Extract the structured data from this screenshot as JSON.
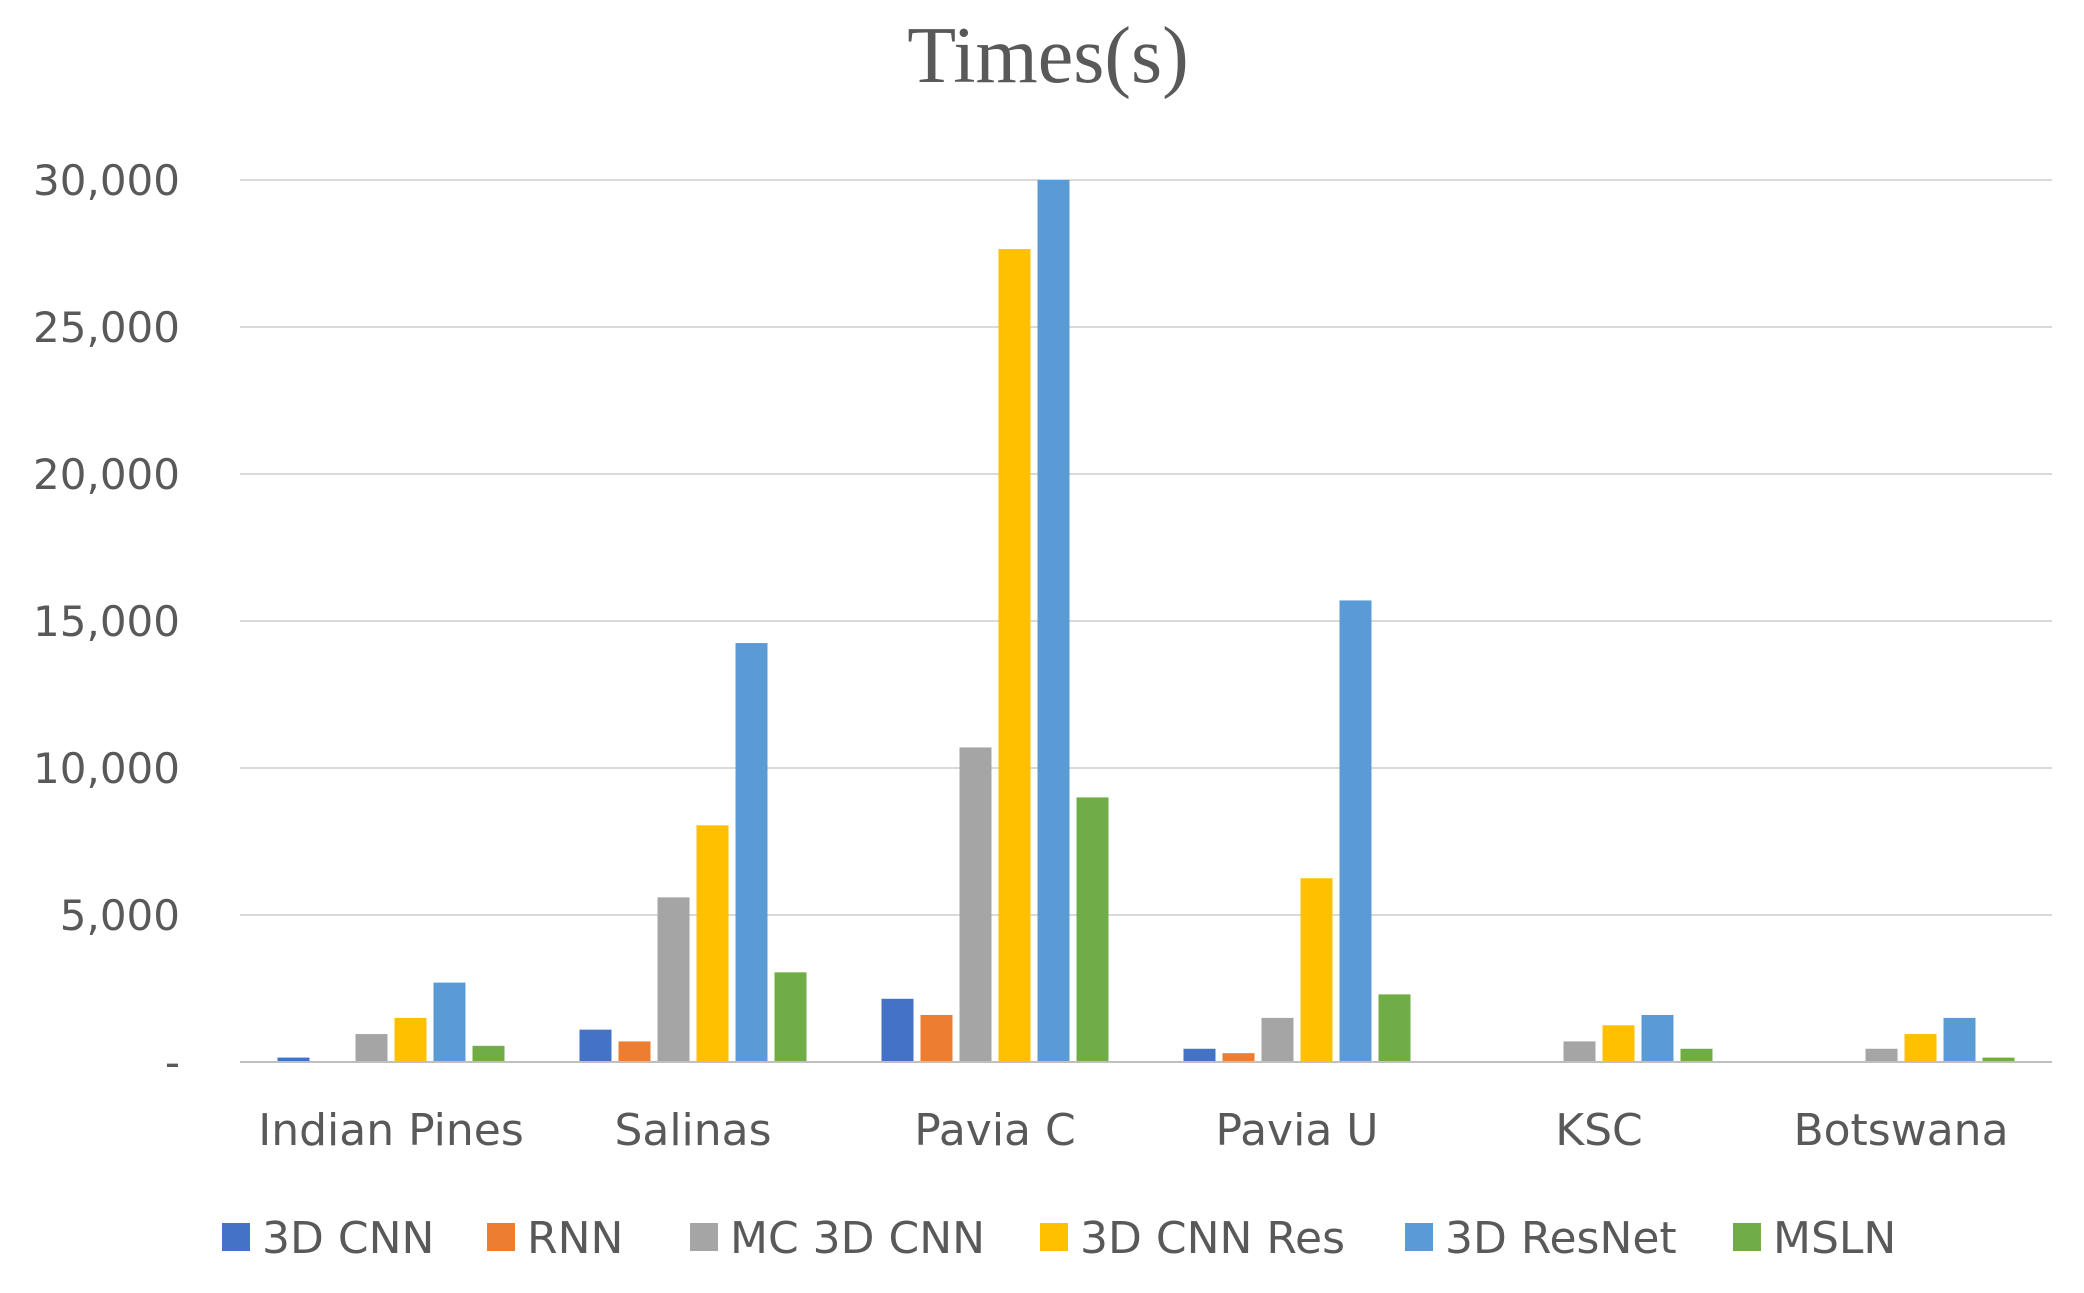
{
  "chart_data": {
    "type": "bar",
    "title": "Times(s)",
    "xlabel": "",
    "ylabel": "",
    "ylim": [
      0,
      30000
    ],
    "yticks": [
      0,
      5000,
      10000,
      15000,
      20000,
      25000,
      30000
    ],
    "ytick_labels": [
      "-",
      "5,000",
      "10,000",
      "15,000",
      "20,000",
      "25,000",
      "30,000"
    ],
    "grid": true,
    "legend_position": "bottom",
    "categories": [
      "Indian Pines",
      "Salinas",
      "Pavia C",
      "Pavia U",
      "KSC",
      "Botswana"
    ],
    "series": [
      {
        "name": "3D CNN",
        "color": "#4472c4",
        "values": [
          150,
          1100,
          2150,
          450,
          0,
          0
        ]
      },
      {
        "name": "RNN",
        "color": "#ed7d31",
        "values": [
          0,
          700,
          1600,
          300,
          0,
          0
        ]
      },
      {
        "name": "MC 3D CNN",
        "color": "#a5a5a5",
        "values": [
          950,
          5600,
          10700,
          1500,
          700,
          450
        ]
      },
      {
        "name": "3D CNN Res",
        "color": "#ffc000",
        "values": [
          1500,
          8050,
          27650,
          6250,
          1250,
          950
        ]
      },
      {
        "name": "3D ResNet",
        "color": "#5b9bd5",
        "values": [
          2700,
          14250,
          30000,
          15700,
          1600,
          1500
        ]
      },
      {
        "name": "MSLN",
        "color": "#70ad47",
        "values": [
          550,
          3050,
          9000,
          2300,
          450,
          150
        ]
      }
    ]
  }
}
